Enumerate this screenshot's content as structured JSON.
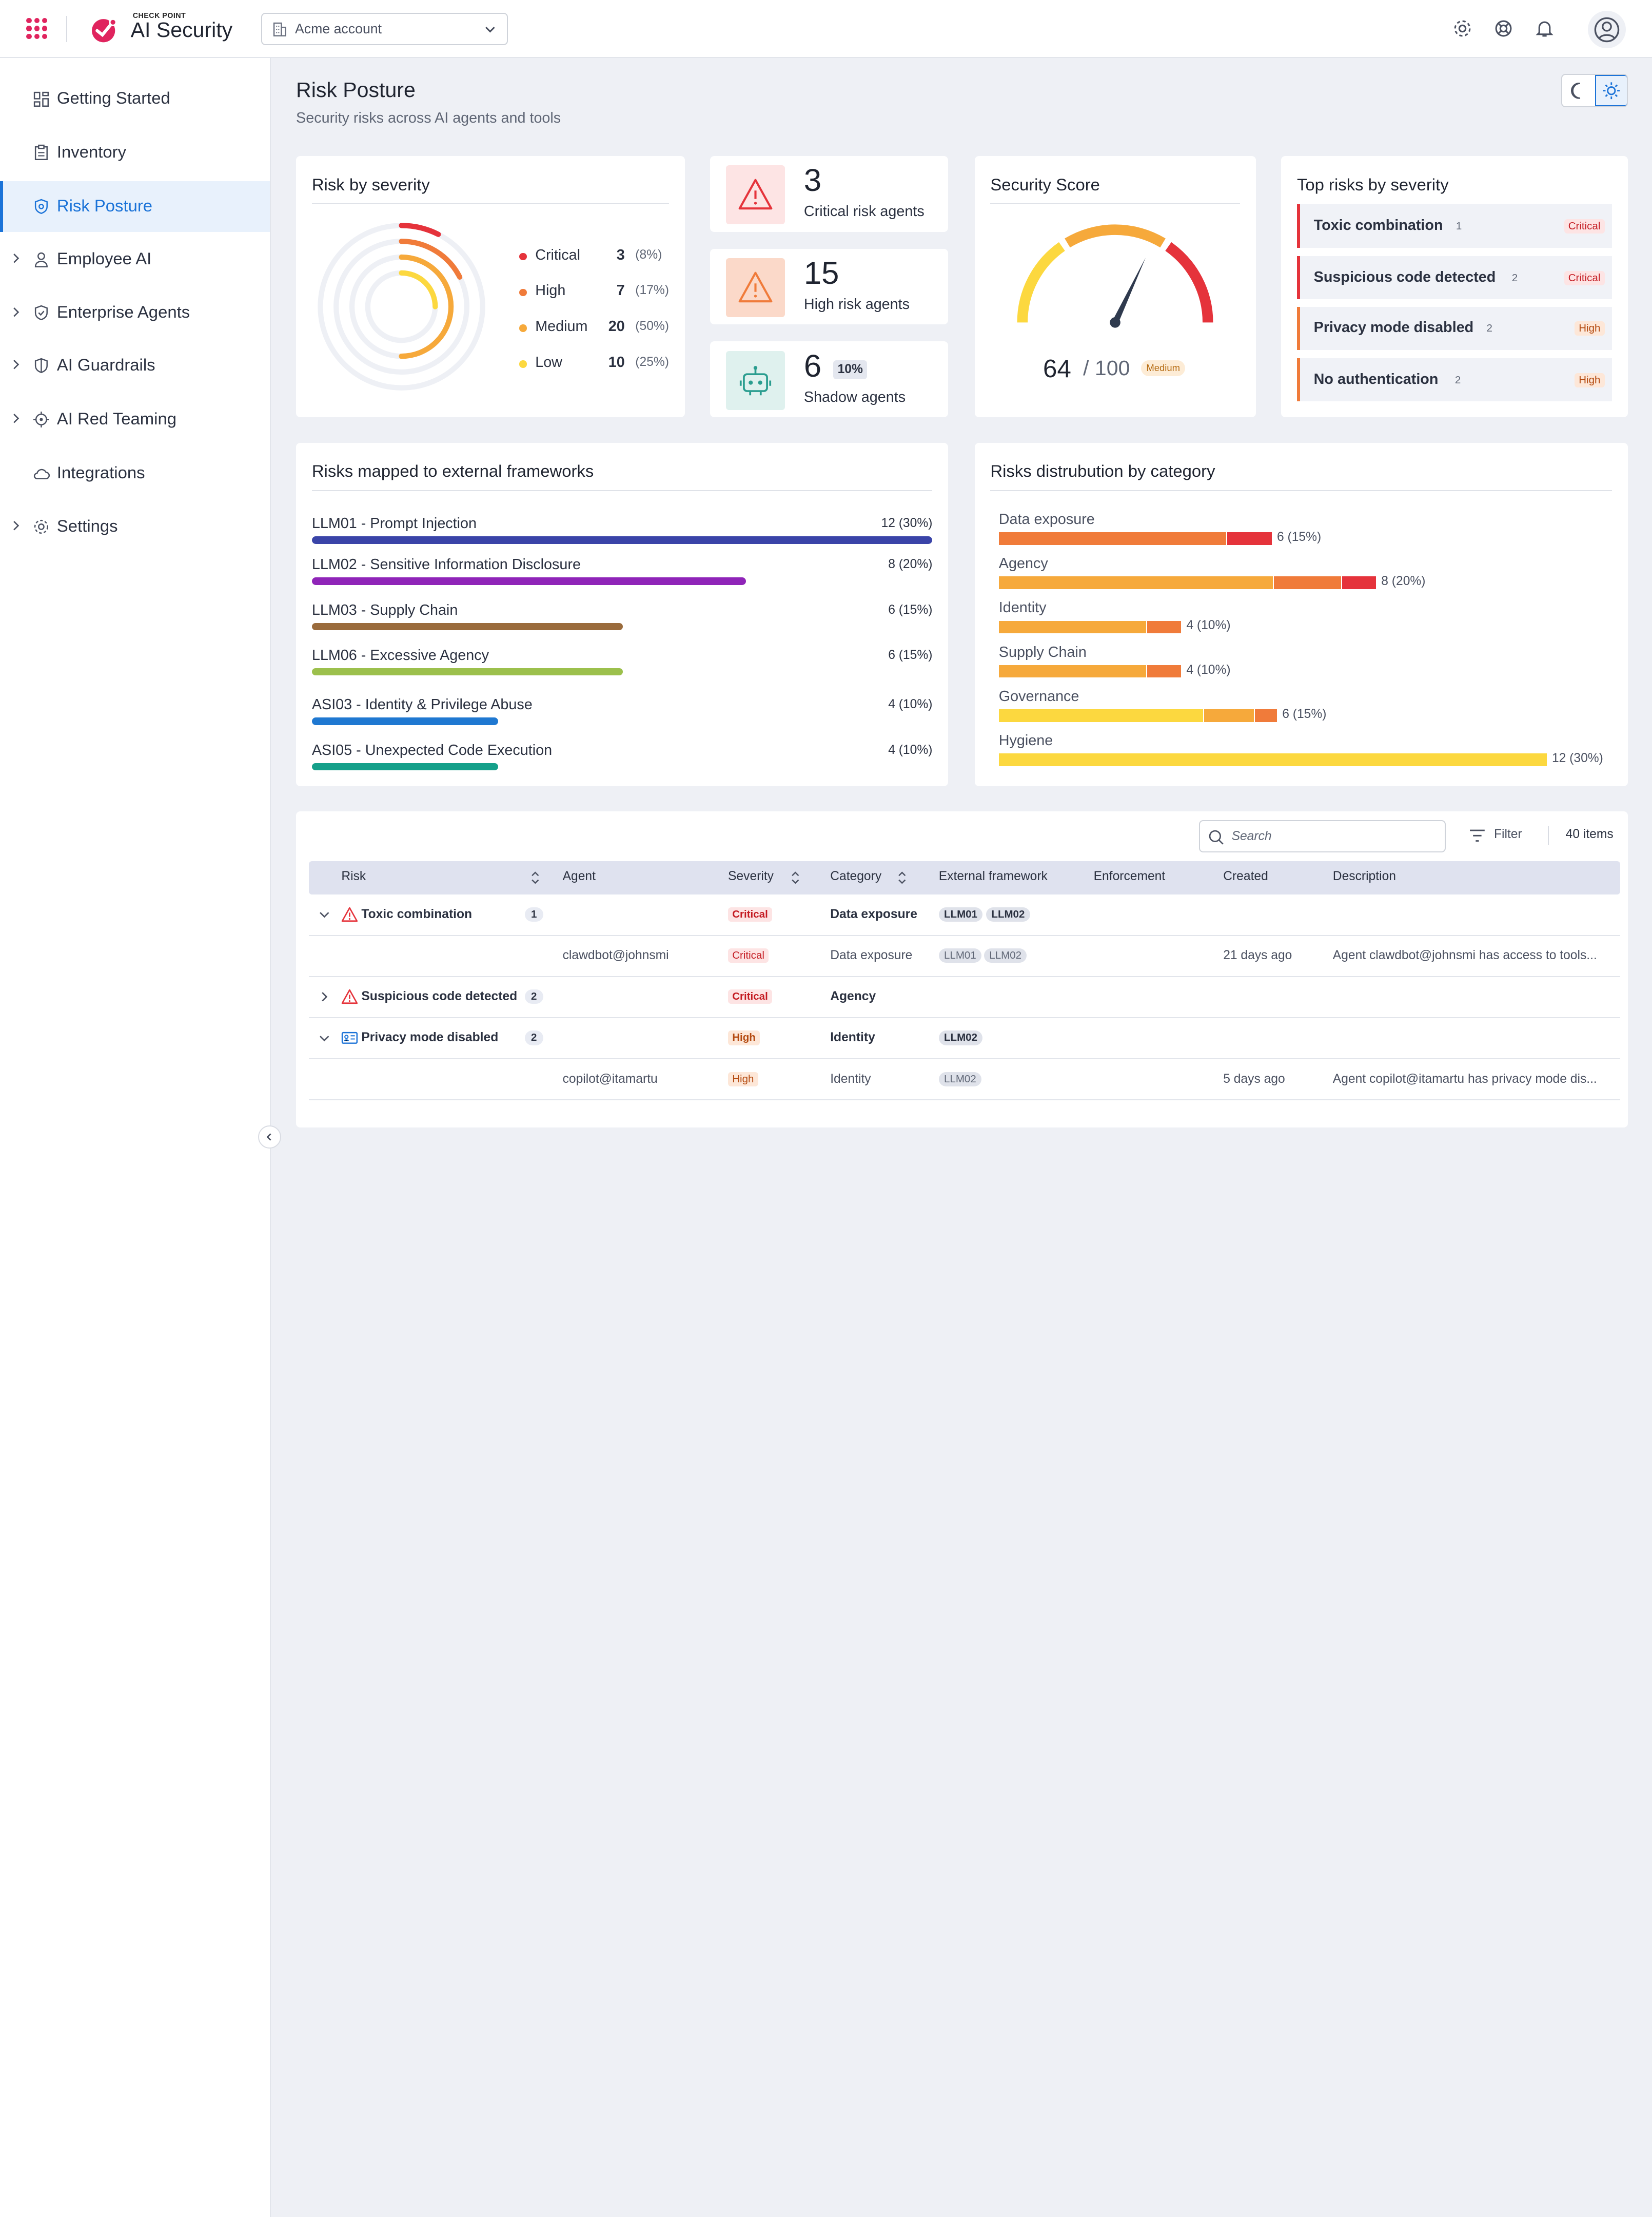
{
  "header": {
    "brand_small": "CHECK POINT",
    "brand": "AI Security",
    "account": "Acme account"
  },
  "sidebar": {
    "items": [
      {
        "label": "Getting Started"
      },
      {
        "label": "Inventory"
      },
      {
        "label": "Risk Posture"
      },
      {
        "label": "Employee AI"
      },
      {
        "label": "Enterprise Agents"
      },
      {
        "label": "AI Guardrails"
      },
      {
        "label": "AI Red Teaming"
      },
      {
        "label": "Integrations"
      },
      {
        "label": "Settings"
      }
    ]
  },
  "page": {
    "title": "Risk Posture",
    "subtitle": "Security risks across AI agents and tools"
  },
  "severity": {
    "title": "Risk by severity",
    "rows": [
      {
        "name": "Critical",
        "count": "3",
        "pct": "(8%)",
        "color": "#e5333b"
      },
      {
        "name": "High",
        "count": "7",
        "pct": "(17%)",
        "color": "#f07b3a"
      },
      {
        "name": "Medium",
        "count": "20",
        "pct": "(50%)",
        "color": "#f6a93b"
      },
      {
        "name": "Low",
        "count": "10",
        "pct": "(25%)",
        "color": "#fcd83f"
      }
    ]
  },
  "stats": {
    "critical": {
      "value": "3",
      "label": "Critical risk agents"
    },
    "high": {
      "value": "15",
      "label": "High risk agents"
    },
    "shadow": {
      "value": "6",
      "label": "Shadow agents",
      "badge": "10%"
    }
  },
  "score": {
    "title": "Security Score",
    "value": "64",
    "max": "/ 100",
    "level": "Medium",
    "fraction": 0.64
  },
  "top_risks": {
    "title": "Top risks by severity",
    "rows": [
      {
        "name": "Toxic combination",
        "count": "1",
        "badge": "Critical"
      },
      {
        "name": "Suspicious code detected",
        "count": "2",
        "badge": "Critical"
      },
      {
        "name": "Privacy mode disabled",
        "count": "2",
        "badge": "High"
      },
      {
        "name": "No authentication",
        "count": "2",
        "badge": "High"
      }
    ]
  },
  "frameworks": {
    "title": "Risks mapped to external frameworks",
    "rows": [
      {
        "label": "LLM01 - Prompt Injection",
        "value": "12 (30%)",
        "share": 1.0,
        "color": "#3a44a8"
      },
      {
        "label": "LLM02 - Sensitive Information Disclosure",
        "value": "8 (20%)",
        "share": 0.7,
        "color": "#8f24b8"
      },
      {
        "label": "LLM03 - Supply Chain",
        "value": "6 (15%)",
        "share": 0.5,
        "color": "#9a6b3c"
      },
      {
        "label": "LLM06 - Excessive Agency",
        "value": "6 (15%)",
        "share": 0.5,
        "color": "#9cc04c"
      },
      {
        "label": "ASI03 - Identity & Privilege Abuse",
        "value": "4 (10%)",
        "share": 0.3,
        "color": "#1f78d1"
      },
      {
        "label": "ASI05 - Unexpected Code Execution",
        "value": "4 (10%)",
        "share": 0.3,
        "color": "#15a08a"
      }
    ]
  },
  "categories": {
    "title": "Risks distrubution by category",
    "rows": [
      {
        "label": "Data exposure",
        "value": "6 (15%)",
        "segments": [
          {
            "n": 5,
            "color": "#f07b3a"
          },
          {
            "n": 1,
            "color": "#e5333b"
          }
        ]
      },
      {
        "label": "Agency",
        "value": "8 (20%)",
        "segments": [
          {
            "n": 6,
            "color": "#f6a93b"
          },
          {
            "n": 1.5,
            "color": "#f07b3a"
          },
          {
            "n": 0.75,
            "color": "#e5333b"
          }
        ]
      },
      {
        "label": "Identity",
        "value": "4 (10%)",
        "segments": [
          {
            "n": 3.25,
            "color": "#f6a93b"
          },
          {
            "n": 0.75,
            "color": "#f07b3a"
          }
        ]
      },
      {
        "label": "Supply Chain",
        "value": "4 (10%)",
        "segments": [
          {
            "n": 3.25,
            "color": "#f6a93b"
          },
          {
            "n": 0.75,
            "color": "#f07b3a"
          }
        ]
      },
      {
        "label": "Governance",
        "value": "6 (15%)",
        "segments": [
          {
            "n": 4.5,
            "color": "#fcd83f"
          },
          {
            "n": 1.1,
            "color": "#f6a93b"
          },
          {
            "n": 0.5,
            "color": "#f07b3a"
          }
        ]
      },
      {
        "label": "Hygiene",
        "value": "12 (30%)",
        "segments": [
          {
            "n": 12,
            "color": "#fcd83f"
          }
        ]
      }
    ]
  },
  "table": {
    "search_placeholder": "Search",
    "filter": "Filter",
    "items": "40 items",
    "columns": [
      "Risk",
      "Agent",
      "Severity",
      "Category",
      "External framework",
      "Enforcement",
      "Created",
      "Description"
    ],
    "rows": [
      {
        "risk": "Toxic combination",
        "count": "1",
        "agent": "",
        "severity": "Critical",
        "category": "Data exposure",
        "frameworks": [
          "LLM01",
          "LLM02"
        ],
        "created": "",
        "description": ""
      },
      {
        "risk": "",
        "count": "",
        "agent": "clawdbot@johnsmi",
        "severity": "Critical",
        "category": "Data exposure",
        "frameworks": [
          "LLM01",
          "LLM02"
        ],
        "created": "21 days ago",
        "description": "Agent clawdbot@johnsmi has access to tools..."
      },
      {
        "risk": "Suspicious code detected",
        "count": "2",
        "agent": "",
        "severity": "Critical",
        "category": "Agency",
        "frameworks": [],
        "created": "",
        "description": ""
      },
      {
        "risk": "Privacy mode disabled",
        "count": "2",
        "agent": "",
        "severity": "High",
        "category": "Identity",
        "frameworks": [
          "LLM02"
        ],
        "created": "",
        "description": ""
      },
      {
        "risk": "",
        "count": "",
        "agent": "copilot@itamartu",
        "severity": "High",
        "category": "Identity",
        "frameworks": [
          "LLM02"
        ],
        "created": "5 days ago",
        "description": "Agent copilot@itamartu has privacy mode dis..."
      }
    ]
  }
}
